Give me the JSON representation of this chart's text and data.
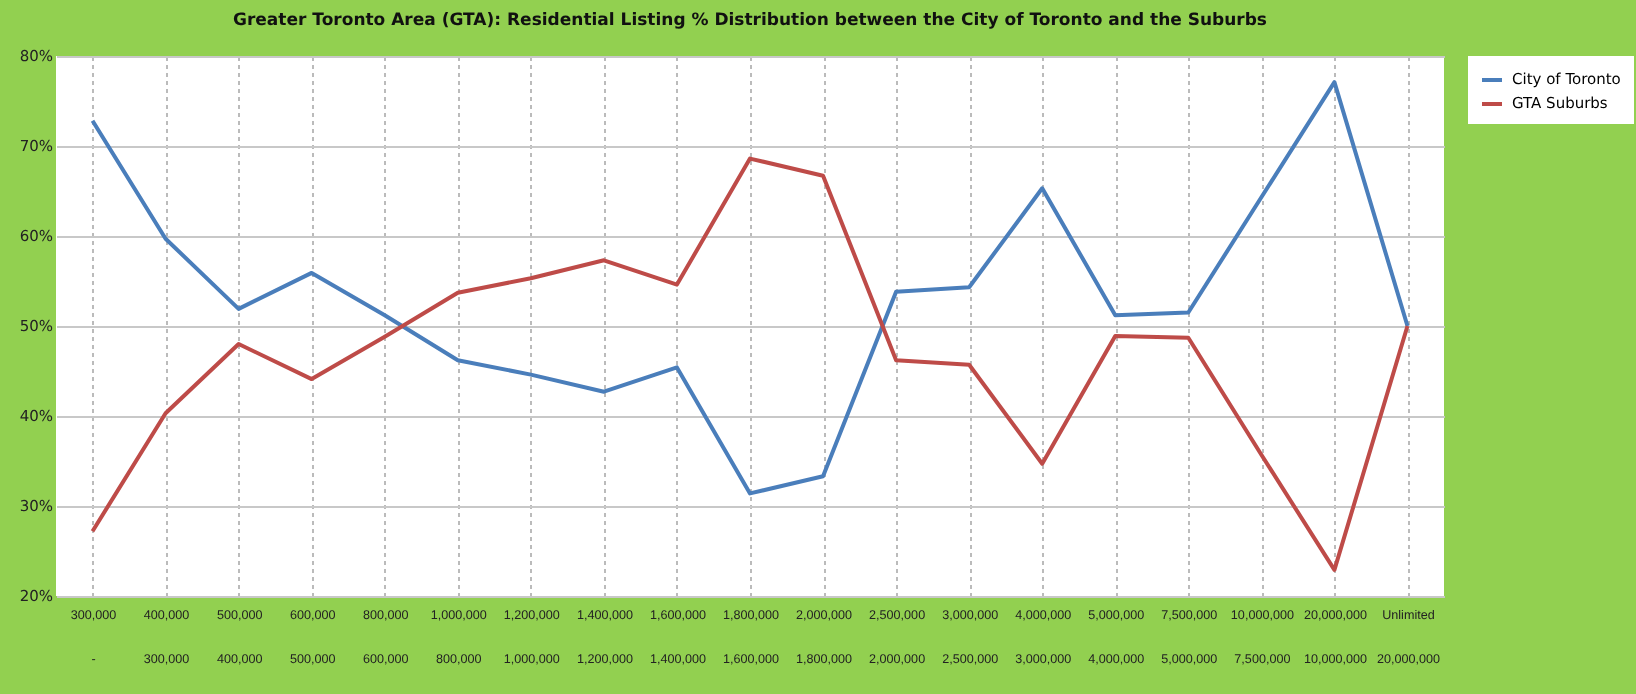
{
  "chart_data": {
    "type": "line",
    "title": "Greater Toronto Area (GTA): Residential Listing % Distribution between the City of Toronto and the Suburbs",
    "categories": [
      "300,000\n-",
      "400,000\n300,000",
      "500,000\n400,000",
      "600,000\n500,000",
      "800,000\n600,000",
      "1,000,000\n800,000",
      "1,200,000\n1,000,000",
      "1,400,000\n1,200,000",
      "1,600,000\n1,400,000",
      "1,800,000\n1,600,000",
      "2,000,000\n1,800,000",
      "2,500,000\n2,000,000",
      "3,000,000\n2,500,000",
      "4,000,000\n3,000,000",
      "5,000,000\n4,000,000",
      "7,500,000\n5,000,000",
      "10,000,000\n7,500,000",
      "20,000,000\n10,000,000",
      "Unlimited\n20,000,000"
    ],
    "series": [
      {
        "name": "City of Toronto",
        "color": "#4a7ebb",
        "values": [
          72.8,
          59.7,
          51.9,
          55.9,
          51.2,
          46.2,
          44.6,
          42.7,
          45.4,
          31.4,
          33.3,
          53.8,
          54.3,
          65.3,
          51.2,
          51.5,
          64.3,
          77.1,
          50
        ]
      },
      {
        "name": "GTA Suburbs",
        "color": "#be4b48",
        "values": [
          27.2,
          40.3,
          48.0,
          44.1,
          48.8,
          53.7,
          55.3,
          57.3,
          54.6,
          68.6,
          66.7,
          46.2,
          45.7,
          34.7,
          48.9,
          48.7,
          35.7,
          22.9,
          50
        ]
      }
    ],
    "ylim": [
      20,
      80
    ],
    "yticks": [
      {
        "value": 20,
        "label": "20%"
      },
      {
        "value": 30,
        "label": "30%"
      },
      {
        "value": 40,
        "label": "40%"
      },
      {
        "value": 50,
        "label": "50%"
      },
      {
        "value": 60,
        "label": "60%"
      },
      {
        "value": 70,
        "label": "70%"
      },
      {
        "value": 80,
        "label": "80%"
      }
    ],
    "grid": true,
    "legend": "right",
    "marker": "none",
    "line_style": "solid"
  }
}
